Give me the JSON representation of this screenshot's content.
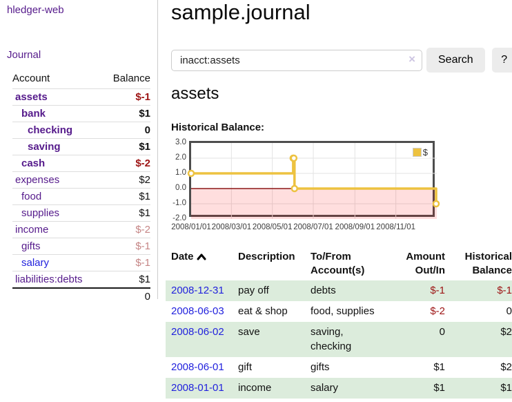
{
  "app": {
    "title": "hledger-web"
  },
  "sidebar": {
    "journal_link": "Journal",
    "accounts": {
      "headers": {
        "account": "Account",
        "balance": "Balance"
      },
      "rows": [
        {
          "name": "assets",
          "balance": "$-1"
        },
        {
          "name": "bank",
          "balance": "$1"
        },
        {
          "name": "checking",
          "balance": "0"
        },
        {
          "name": "saving",
          "balance": "$1"
        },
        {
          "name": "cash",
          "balance": "$-2"
        },
        {
          "name": "expenses",
          "balance": "$2"
        },
        {
          "name": "food",
          "balance": "$1"
        },
        {
          "name": "supplies",
          "balance": "$1"
        },
        {
          "name": "income",
          "balance": "$-2"
        },
        {
          "name": "gifts",
          "balance": "$-1"
        },
        {
          "name": "salary",
          "balance": "$-1"
        },
        {
          "name": "liabilities:debts",
          "balance": "$1"
        }
      ],
      "total": "0"
    }
  },
  "main": {
    "title": "sample.journal",
    "search": {
      "value": "inacct:assets",
      "clear_icon": "×",
      "search_button": "Search",
      "help_button": "?"
    },
    "account_heading": "assets",
    "chart_label": "Historical Balance:"
  },
  "chart_data": {
    "type": "line",
    "step": true,
    "title": "Historical Balance:",
    "x_start": "2008-01-01",
    "x_total_days": 366,
    "ylim": [
      -2,
      3
    ],
    "yticks": [
      3,
      2,
      1,
      0,
      -1,
      -2
    ],
    "xticks": [
      "2008/01/01",
      "2008/03/01",
      "2008/05/01",
      "2008/07/01",
      "2008/09/01",
      "2008/11/01"
    ],
    "grid": true,
    "legend_position": "top-right",
    "series": [
      {
        "name": "$",
        "color": "#edc240",
        "points": [
          [
            "2008-01-01",
            1
          ],
          [
            "2008-06-01",
            2
          ],
          [
            "2008-06-02",
            2
          ],
          [
            "2008-06-03",
            0
          ],
          [
            "2008-12-31",
            -1
          ]
        ]
      }
    ],
    "legend": [
      {
        "label": "$",
        "color": "#edc240"
      }
    ],
    "negative_region_color": "rgba(255,0,0,0.13)",
    "zero_line_color": "#8b1616",
    "grid_color": "#e3e3e3",
    "border_color": "#4d4d4d"
  },
  "register": {
    "headers": {
      "date": "Date",
      "description": "Description",
      "accounts": "To/From\nAccount(s)",
      "amount": "Amount\nOut/In",
      "balance": "Historical\nBalance"
    },
    "sort": {
      "column": "Date",
      "direction": "ascending"
    },
    "rows": [
      {
        "date": "2008-12-31",
        "description": "pay off",
        "accounts": "debts",
        "amount": "$-1",
        "balance": "$-1"
      },
      {
        "date": "2008-06-03",
        "description": "eat & shop",
        "accounts": "food, supplies",
        "amount": "$-2",
        "balance": "0"
      },
      {
        "date": "2008-06-02",
        "description": "save",
        "accounts": "saving,\nchecking",
        "amount": "0",
        "balance": "$2"
      },
      {
        "date": "2008-06-01",
        "description": "gift",
        "accounts": "gifts",
        "amount": "$1",
        "balance": "$2"
      },
      {
        "date": "2008-01-01",
        "description": "income",
        "accounts": "salary",
        "amount": "$1",
        "balance": "$1"
      }
    ]
  }
}
